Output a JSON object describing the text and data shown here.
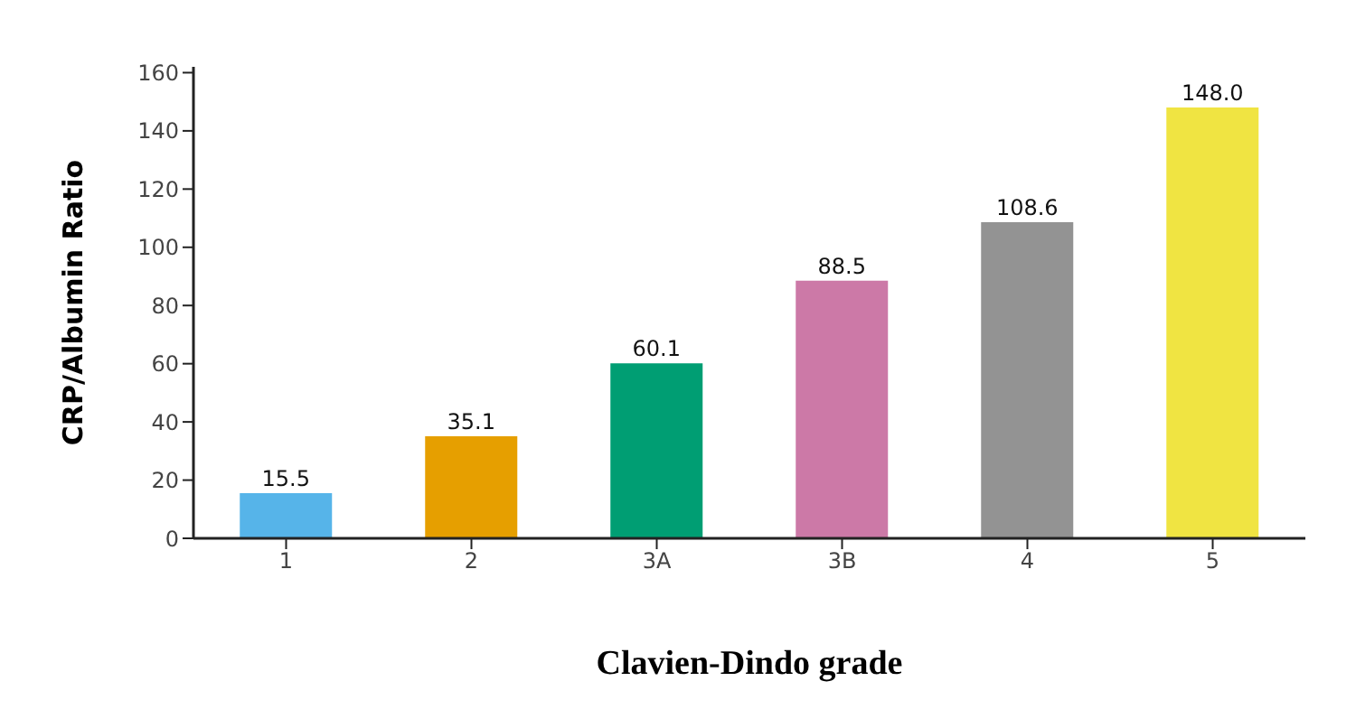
{
  "chart_data": {
    "type": "bar",
    "xlabel": "Clavien-Dindo grade",
    "ylabel": "CRP/Albumin Ratio",
    "categories": [
      "1",
      "2",
      "3A",
      "3B",
      "4",
      "5"
    ],
    "values": [
      15.5,
      35.1,
      60.1,
      88.5,
      108.6,
      148.0
    ],
    "value_labels": [
      "15.5",
      "35.1",
      "60.1",
      "88.5",
      "108.6",
      "148.0"
    ],
    "colors": [
      "#56b4e9",
      "#e69f00",
      "#009e73",
      "#cc79a7",
      "#939393",
      "#f0e442"
    ],
    "ylim": [
      0,
      162
    ],
    "yticks": [
      0,
      20,
      40,
      60,
      80,
      100,
      120,
      140,
      160
    ],
    "grid": false,
    "legend": false
  }
}
